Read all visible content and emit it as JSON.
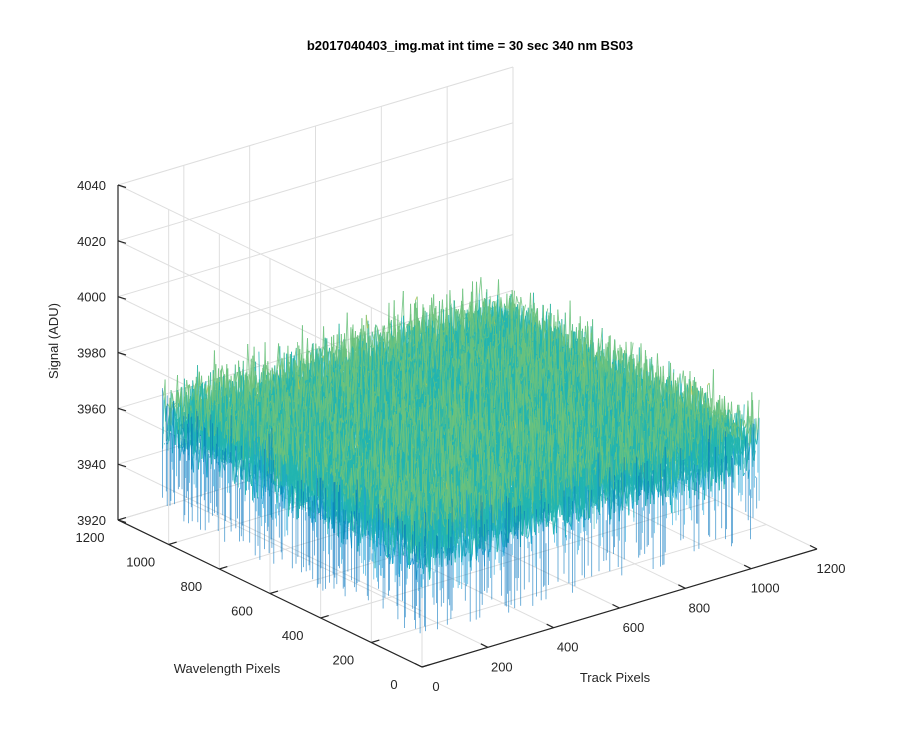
{
  "chart_data": {
    "type": "surface",
    "title": "b2017040403_img.mat int time = 30 sec  340 nm BS03",
    "xlabel": "Track Pixels",
    "ylabel": "Wavelength Pixels",
    "zlabel": "Signal (ADU)",
    "xlim": [
      0,
      1200
    ],
    "ylim": [
      0,
      1200
    ],
    "zlim": [
      3920,
      4040
    ],
    "x_ticks": [
      "0",
      "200",
      "400",
      "600",
      "800",
      "1000",
      "1200"
    ],
    "y_ticks": [
      "0",
      "200",
      "400",
      "600",
      "800",
      "1000",
      "1200"
    ],
    "z_ticks": [
      "3920",
      "3940",
      "3960",
      "3980",
      "4000",
      "4020",
      "4040"
    ],
    "surface": {
      "x_range": [
        0,
        1024
      ],
      "y_range": [
        0,
        1024
      ],
      "mean_signal": 3965,
      "noise_range": [
        3930,
        4005
      ],
      "colormap": [
        "#0072bd",
        "#1a9fd8",
        "#22b5b0",
        "#6cc27c",
        "#c9c43f",
        "#e8c93a"
      ]
    },
    "grid": true,
    "box": false
  }
}
